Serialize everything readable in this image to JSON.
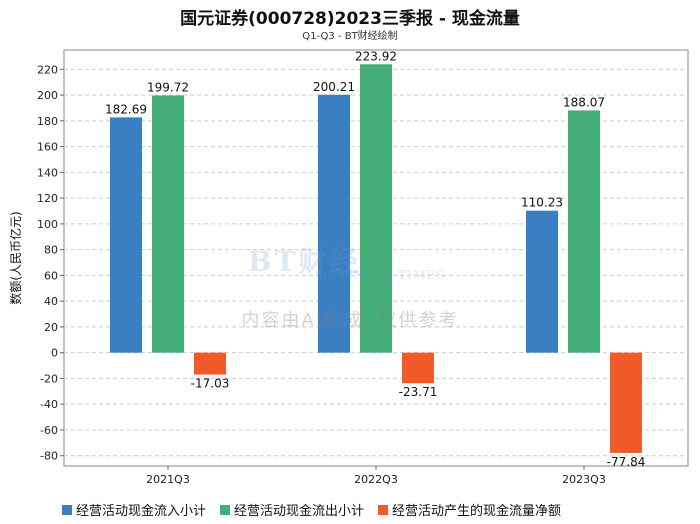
{
  "chart_data": {
    "type": "bar",
    "title": "国元证券(000728)2023三季报 - 现金流量",
    "subtitle": "Q1-Q3 - BT财经绘制",
    "ylabel": "数额(人民币亿元)",
    "xlabel": "",
    "ylim": [
      -88,
      235
    ],
    "yticks": [
      -80,
      -60,
      -40,
      -20,
      0,
      20,
      40,
      60,
      80,
      100,
      120,
      140,
      160,
      180,
      200,
      220
    ],
    "grid": true,
    "legend_position": "bottom",
    "categories": [
      "2021Q3",
      "2022Q3",
      "2023Q3"
    ],
    "series": [
      {
        "name": "经营活动现金流入小计",
        "color": "#3a7fc1",
        "values": [
          182.69,
          200.21,
          110.23
        ]
      },
      {
        "name": "经营活动现金流出小计",
        "color": "#45ad78",
        "values": [
          199.72,
          223.92,
          188.07
        ]
      },
      {
        "name": "经营活动产生的现金流量净额",
        "color": "#f05a28",
        "values": [
          -17.03,
          -23.71,
          -77.84
        ]
      }
    ]
  },
  "watermark": {
    "logo": "BT财经",
    "logo_sub": "BUSINESS TIMES",
    "ai_notice": "内容由AI生成, 仅供参考"
  }
}
